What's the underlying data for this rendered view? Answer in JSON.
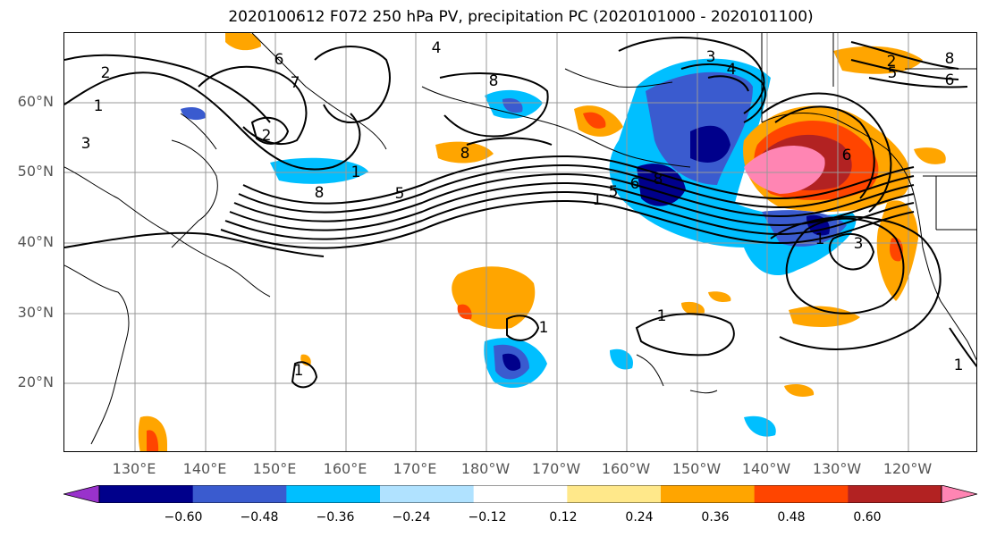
{
  "title": "2020100612 F072 250 hPa PV, precipitation PC (2020101000 - 2020101100)",
  "lat_labels": [
    "60°N",
    "50°N",
    "40°N",
    "30°N",
    "20°N"
  ],
  "lon_labels": [
    "130°E",
    "140°E",
    "150°E",
    "160°E",
    "170°E",
    "180°W",
    "170°W",
    "160°W",
    "150°W",
    "140°W",
    "130°W",
    "120°W"
  ],
  "colorbar": {
    "ticks": [
      "−0.60",
      "−0.48",
      "−0.36",
      "−0.24",
      "−0.12",
      "0.12",
      "0.24",
      "0.36",
      "0.48",
      "0.60"
    ],
    "colors": [
      "#9932cc",
      "#00008b",
      "#3a5bcf",
      "#00bfff",
      "#b0e2ff",
      "#ffffff",
      "#ffe88a",
      "#ffa500",
      "#ff4500",
      "#b22222",
      "#ff85b3"
    ]
  },
  "contour_labels": [
    "2",
    "1",
    "3",
    "6",
    "7",
    "2",
    "1",
    "8",
    "4",
    "8",
    "8",
    "5",
    "3",
    "4",
    "1",
    "5",
    "6",
    "8",
    "5",
    "6",
    "2",
    "8",
    "6",
    "1",
    "3",
    "1",
    "1",
    "1",
    "1"
  ]
}
